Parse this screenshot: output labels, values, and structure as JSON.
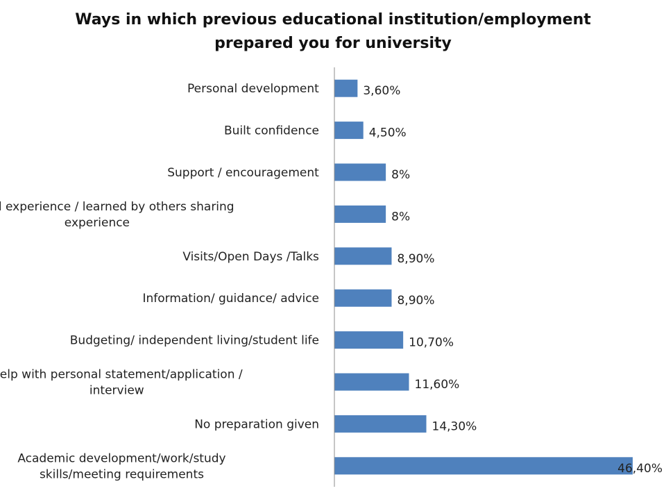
{
  "chart_data": {
    "type": "bar",
    "orientation": "horizontal",
    "title_lines": [
      "Ways in which previous educational institution/employment",
      "prepared you for university"
    ],
    "categories": [
      [
        "Personal development"
      ],
      [
        "Built confidence"
      ],
      [
        "Support / encouragement"
      ],
      [
        "Gained experience / learned by others sharing",
        "experience"
      ],
      [
        "Visits/Open Days /Talks"
      ],
      [
        "Information/ guidance/ advice"
      ],
      [
        "Budgeting/ independent living/student life"
      ],
      [
        "Help with personal statement/application /",
        "interview"
      ],
      [
        "No preparation given"
      ],
      [
        "Academic development/work/study",
        "skills/meeting requirements"
      ]
    ],
    "values": [
      3.6,
      4.5,
      8,
      8,
      8.9,
      8.9,
      10.7,
      11.6,
      14.3,
      46.4
    ],
    "value_labels": [
      "3,60%",
      "4,50%",
      "8%",
      "8%",
      "8,90%",
      "8,90%",
      "10,70%",
      "11,60%",
      "14,30%",
      "46,40%"
    ],
    "xlim": [
      0,
      50
    ],
    "bar_color": "#4F81BD",
    "axis_color": "#8C8C8C",
    "grid": false,
    "legend": "none"
  }
}
